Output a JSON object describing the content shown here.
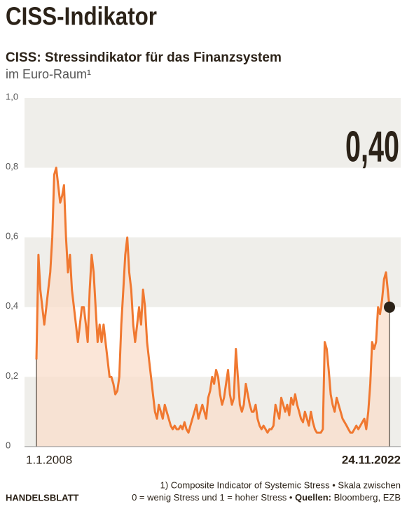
{
  "chart_data": {
    "type": "area",
    "title": "CISS-Indikator",
    "subtitle": "CISS: Stressindikator für das Finanzsystem",
    "subtitle2": "im Euro-Raum¹",
    "annotation": "0,40",
    "color": "#f07830",
    "fill_color": "#f9ddcb",
    "marker_color": "#2b2218",
    "band_color": "#efeeea",
    "ylim": [
      0,
      1.0
    ],
    "yticks": [
      0,
      {
        "value": 0.2,
        "label": "0,2"
      },
      {
        "value": 0.4,
        "label": "0,4"
      },
      {
        "value": 0.6,
        "label": "0,6"
      },
      {
        "value": 0.8,
        "label": "0,8"
      },
      {
        "value": 1.0,
        "label": "1,0"
      }
    ],
    "x": [
      "1.1.2008",
      "1.2.2008",
      "1.3.2008",
      "1.4.2008",
      "1.5.2008",
      "1.6.2008",
      "1.7.2008",
      "1.8.2008",
      "1.9.2008",
      "1.10.2008",
      "1.11.2008",
      "1.12.2008",
      "1.1.2009",
      "1.2.2009",
      "1.3.2009",
      "1.4.2009",
      "1.5.2009",
      "1.6.2009",
      "1.7.2009",
      "1.8.2009",
      "1.9.2009",
      "1.10.2009",
      "1.11.2009",
      "1.12.2009",
      "1.1.2010",
      "1.2.2010",
      "1.3.2010",
      "1.4.2010",
      "1.5.2010",
      "1.6.2010",
      "1.7.2010",
      "1.8.2010",
      "1.9.2010",
      "1.10.2010",
      "1.11.2010",
      "1.12.2010",
      "1.1.2011",
      "1.2.2011",
      "1.3.2011",
      "1.4.2011",
      "1.5.2011",
      "1.6.2011",
      "1.7.2011",
      "1.8.2011",
      "1.9.2011",
      "1.10.2011",
      "1.11.2011",
      "1.12.2011",
      "1.1.2012",
      "1.2.2012",
      "1.3.2012",
      "1.4.2012",
      "1.5.2012",
      "1.6.2012",
      "1.7.2012",
      "1.8.2012",
      "1.9.2012",
      "1.10.2012",
      "1.11.2012",
      "1.12.2012",
      "1.1.2013",
      "1.2.2013",
      "1.3.2013",
      "1.4.2013",
      "1.5.2013",
      "1.6.2013",
      "1.7.2013",
      "1.8.2013",
      "1.9.2013",
      "1.10.2013",
      "1.11.2013",
      "1.12.2013",
      "1.1.2014",
      "1.2.2014",
      "1.3.2014",
      "1.4.2014",
      "1.5.2014",
      "1.6.2014",
      "1.7.2014",
      "1.8.2014",
      "1.9.2014",
      "1.10.2014",
      "1.11.2014",
      "1.12.2014",
      "1.1.2015",
      "1.2.2015",
      "1.3.2015",
      "1.4.2015",
      "1.5.2015",
      "1.6.2015",
      "1.7.2015",
      "1.8.2015",
      "1.9.2015",
      "1.10.2015",
      "1.11.2015",
      "1.12.2015",
      "1.1.2016",
      "1.2.2016",
      "1.3.2016",
      "1.4.2016",
      "1.5.2016",
      "1.6.2016",
      "1.7.2016",
      "1.8.2016",
      "1.9.2016",
      "1.10.2016",
      "1.11.2016",
      "1.12.2016",
      "1.1.2017",
      "1.2.2017",
      "1.3.2017",
      "1.4.2017",
      "1.5.2017",
      "1.6.2017",
      "1.7.2017",
      "1.8.2017",
      "1.9.2017",
      "1.10.2017",
      "1.11.2017",
      "1.12.2017",
      "1.1.2018",
      "1.2.2018",
      "1.3.2018",
      "1.4.2018",
      "1.5.2018",
      "1.6.2018",
      "1.7.2018",
      "1.8.2018",
      "1.9.2018",
      "1.10.2018",
      "1.11.2018",
      "1.12.2018",
      "1.1.2019",
      "1.2.2019",
      "1.3.2019",
      "1.4.2019",
      "1.5.2019",
      "1.6.2019",
      "1.7.2019",
      "1.8.2019",
      "1.9.2019",
      "1.10.2019",
      "1.11.2019",
      "1.12.2019",
      "1.1.2020",
      "1.2.2020",
      "1.3.2020",
      "1.4.2020",
      "1.5.2020",
      "1.6.2020",
      "1.7.2020",
      "1.8.2020",
      "1.9.2020",
      "1.10.2020",
      "1.11.2020",
      "1.12.2020",
      "1.1.2021",
      "1.2.2021",
      "1.3.2021",
      "1.4.2021",
      "1.5.2021",
      "1.6.2021",
      "1.7.2021",
      "1.8.2021",
      "1.9.2021",
      "1.10.2021",
      "1.11.2021",
      "1.12.2021",
      "1.1.2022",
      "1.2.2022",
      "1.3.2022",
      "1.4.2022",
      "1.5.2022",
      "1.6.2022",
      "1.7.2022",
      "1.8.2022",
      "1.9.2022",
      "1.10.2022",
      "24.11.2022"
    ],
    "values": [
      0.25,
      0.55,
      0.45,
      0.4,
      0.35,
      0.4,
      0.45,
      0.5,
      0.6,
      0.78,
      0.8,
      0.75,
      0.7,
      0.72,
      0.75,
      0.6,
      0.5,
      0.55,
      0.45,
      0.4,
      0.35,
      0.3,
      0.35,
      0.4,
      0.4,
      0.35,
      0.3,
      0.45,
      0.55,
      0.5,
      0.4,
      0.3,
      0.35,
      0.3,
      0.35,
      0.3,
      0.25,
      0.2,
      0.2,
      0.18,
      0.15,
      0.16,
      0.2,
      0.35,
      0.45,
      0.55,
      0.6,
      0.5,
      0.45,
      0.35,
      0.3,
      0.35,
      0.4,
      0.35,
      0.45,
      0.4,
      0.3,
      0.25,
      0.2,
      0.15,
      0.1,
      0.08,
      0.12,
      0.1,
      0.08,
      0.12,
      0.1,
      0.08,
      0.06,
      0.05,
      0.06,
      0.05,
      0.05,
      0.06,
      0.05,
      0.07,
      0.05,
      0.04,
      0.06,
      0.08,
      0.1,
      0.12,
      0.08,
      0.1,
      0.12,
      0.1,
      0.08,
      0.14,
      0.16,
      0.2,
      0.18,
      0.22,
      0.2,
      0.15,
      0.12,
      0.14,
      0.18,
      0.22,
      0.15,
      0.12,
      0.14,
      0.28,
      0.2,
      0.12,
      0.1,
      0.12,
      0.18,
      0.15,
      0.12,
      0.1,
      0.1,
      0.12,
      0.08,
      0.06,
      0.05,
      0.06,
      0.05,
      0.04,
      0.05,
      0.05,
      0.06,
      0.12,
      0.1,
      0.08,
      0.14,
      0.12,
      0.1,
      0.12,
      0.09,
      0.14,
      0.12,
      0.15,
      0.12,
      0.1,
      0.08,
      0.07,
      0.1,
      0.08,
      0.06,
      0.1,
      0.07,
      0.05,
      0.04,
      0.04,
      0.04,
      0.05,
      0.3,
      0.28,
      0.22,
      0.15,
      0.12,
      0.1,
      0.14,
      0.12,
      0.1,
      0.08,
      0.07,
      0.06,
      0.05,
      0.04,
      0.04,
      0.05,
      0.06,
      0.05,
      0.06,
      0.07,
      0.08,
      0.05,
      0.1,
      0.18,
      0.3,
      0.28,
      0.3,
      0.4,
      0.38,
      0.42,
      0.48,
      0.5,
      0.4
    ],
    "brand": "HANDELSBLATT",
    "footnote": [
      "1) Composite Indicator of Systemic Stress • Skala zwischen",
      "0 = wenig Stress und 1 = hoher Stress • "
    ],
    "source_label": "Quellen:",
    "source": " Bloomberg, EZB"
  }
}
